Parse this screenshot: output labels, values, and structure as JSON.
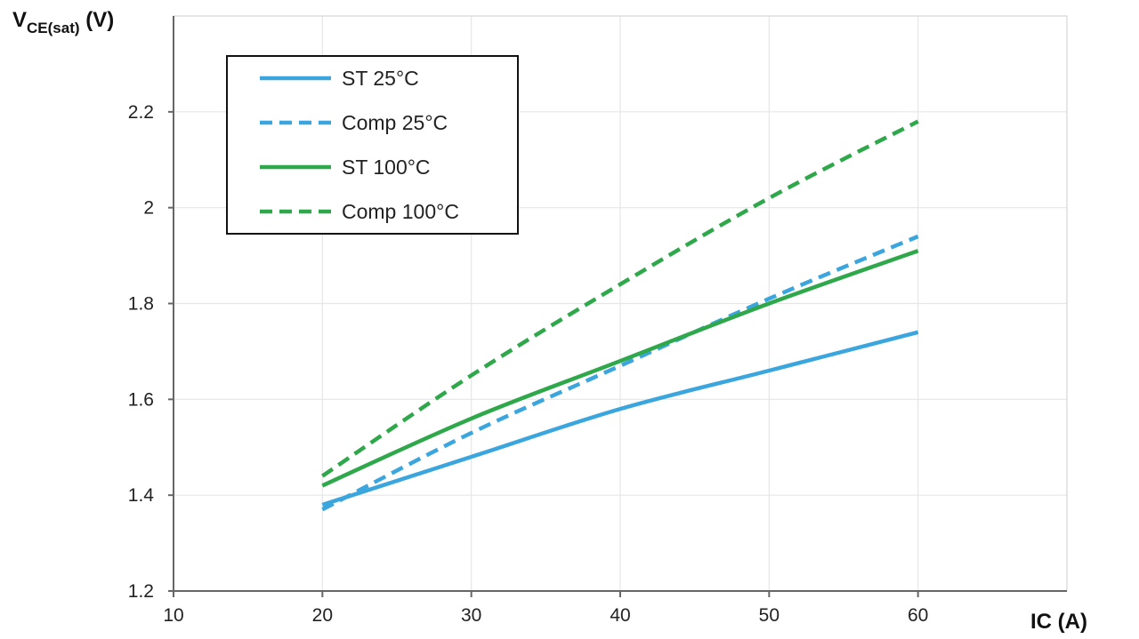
{
  "chart_data": {
    "type": "line",
    "title": "",
    "ylabel": {
      "main": "V",
      "subscript": "CE(sat)",
      "suffix": " (V)"
    },
    "xlabel": "IC (A)",
    "xlim": [
      10,
      70
    ],
    "ylim": [
      1.2,
      2.4
    ],
    "xticks": [
      10,
      20,
      30,
      40,
      50,
      60
    ],
    "yticks": [
      1.2,
      1.4,
      1.6,
      1.8,
      2.0,
      2.2
    ],
    "ytick_labels": [
      "1.2",
      "1.4",
      "1.6",
      "1.8",
      "2",
      "2.2"
    ],
    "grid": true,
    "legend_position": "top-left",
    "x": [
      20,
      30,
      40,
      50,
      60
    ],
    "series": [
      {
        "name": "ST 25°C",
        "values": [
          1.38,
          1.48,
          1.58,
          1.66,
          1.74
        ],
        "color": "#3aa6dd",
        "dashed": false
      },
      {
        "name": "Comp 25°C",
        "values": [
          1.37,
          1.53,
          1.67,
          1.81,
          1.94
        ],
        "color": "#3aa6dd",
        "dashed": true
      },
      {
        "name": "ST 100°C",
        "values": [
          1.42,
          1.56,
          1.68,
          1.8,
          1.91
        ],
        "color": "#2ea84a",
        "dashed": false
      },
      {
        "name": "Comp 100°C",
        "values": [
          1.44,
          1.65,
          1.84,
          2.02,
          2.18
        ],
        "color": "#2ea84a",
        "dashed": true
      }
    ]
  }
}
